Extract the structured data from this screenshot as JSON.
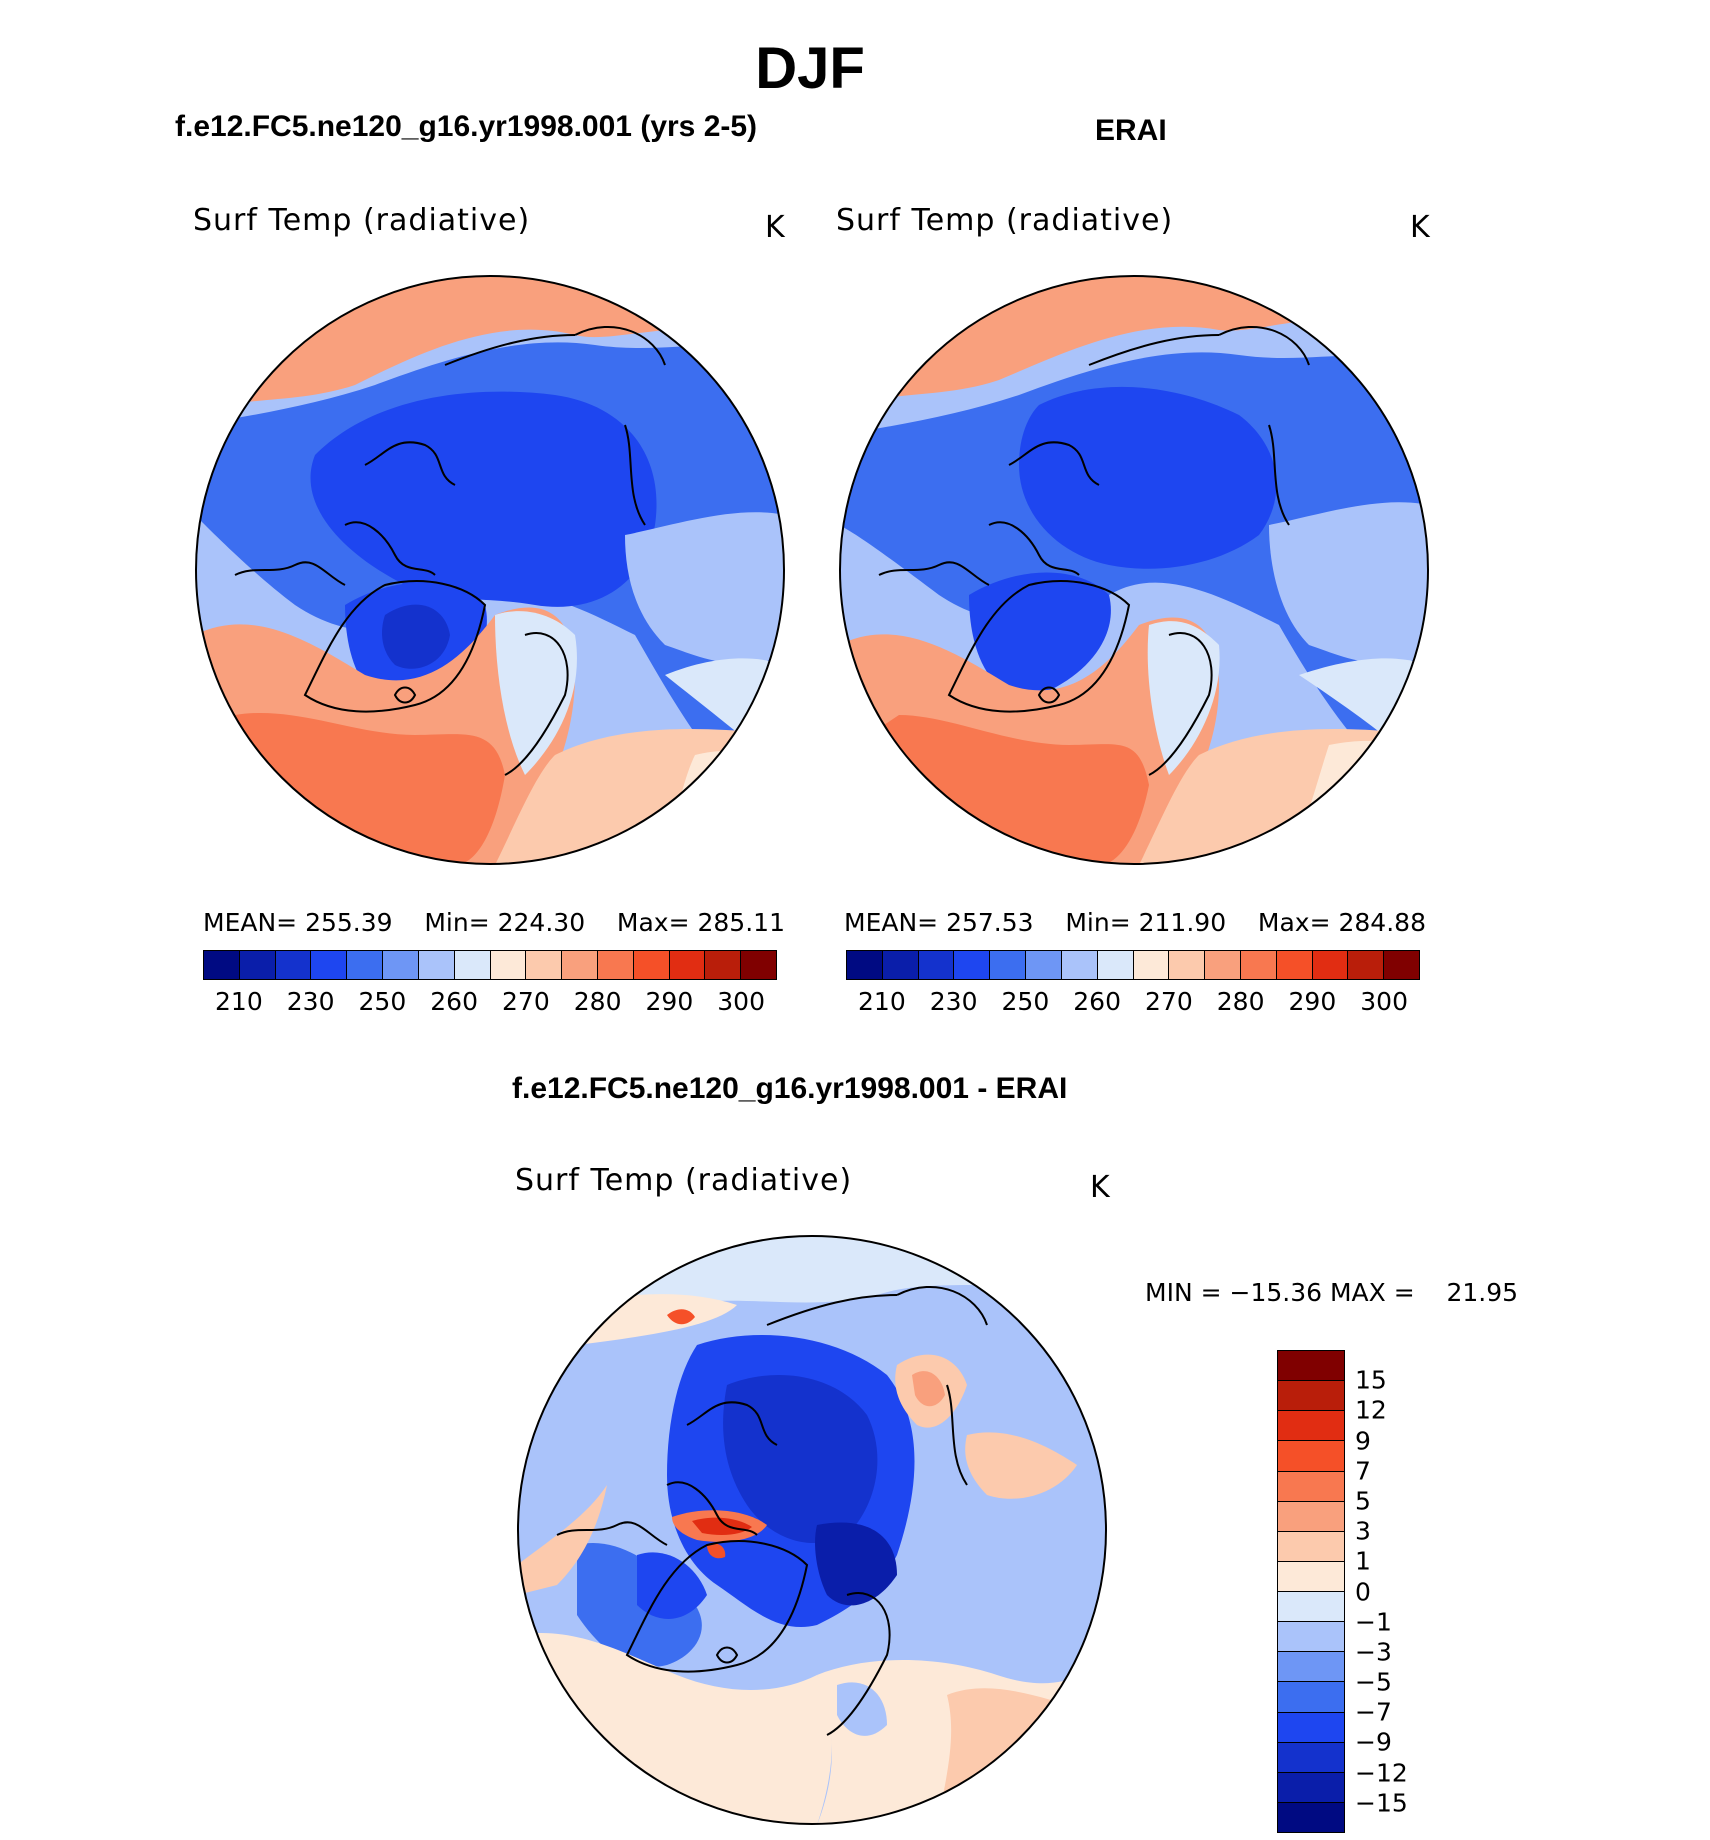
{
  "title": "DJF",
  "panels": {
    "model": {
      "title": "f.e12.FC5.ne120_g16.yr1998.001 (yrs 2-5)",
      "var_label": "Surf Temp (radiative)",
      "units": "K",
      "stats": {
        "mean_label": "MEAN=",
        "mean": "255.39",
        "min_label": "Min=",
        "min": "224.30",
        "max_label": "Max=",
        "max": "285.11"
      }
    },
    "obs": {
      "title": "ERAI",
      "var_label": "Surf Temp (radiative)",
      "units": "K",
      "stats": {
        "mean_label": "MEAN=",
        "mean": "257.53",
        "min_label": "Min=",
        "min": "211.90",
        "max_label": "Max=",
        "max": "284.88"
      }
    },
    "diff": {
      "title": "f.e12.FC5.ne120_g16.yr1998.001 - ERAI",
      "var_label": "Surf Temp (radiative)",
      "units": "K",
      "minmax": {
        "min_label": "MIN =",
        "min": "−15.36",
        "max_label": "MAX =",
        "max": "21.95"
      }
    }
  },
  "abs_colorbar": {
    "colors": [
      "#000a82",
      "#0a1eaa",
      "#1432cd",
      "#1e46f0",
      "#3c6ef0",
      "#6e96f5",
      "#aac3fa",
      "#dae8fa",
      "#fde9d8",
      "#fccaad",
      "#f9a07d",
      "#f87850",
      "#f55028",
      "#e12d12",
      "#b91e0a",
      "#800000"
    ],
    "tick_labels": [
      "210",
      "230",
      "250",
      "260",
      "270",
      "280",
      "290",
      "300"
    ]
  },
  "diff_colorbar": {
    "colors": [
      "#800000",
      "#b91e0a",
      "#e12d12",
      "#f55028",
      "#f87850",
      "#f9a07d",
      "#fccaad",
      "#fde9d8",
      "#dae8fa",
      "#aac3fa",
      "#6e96f5",
      "#3c6ef0",
      "#1e46f0",
      "#1432cd",
      "#0a1eaa",
      "#000a82"
    ],
    "tick_labels": [
      "15",
      "12",
      "9",
      "7",
      "5",
      "3",
      "1",
      "0",
      "−1",
      "−3",
      "−5",
      "−7",
      "−9",
      "−12",
      "−15"
    ]
  }
}
